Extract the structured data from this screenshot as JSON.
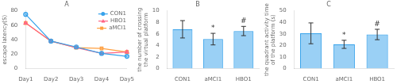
{
  "chart_data": [
    {
      "type": "line",
      "title": "A",
      "ylabel": "escape latency(S)",
      "categories": [
        "Day1",
        "Day2",
        "Day3",
        "Day4",
        "Day5"
      ],
      "series": [
        {
          "name": "CON1",
          "marker": "circle",
          "values": [
            75,
            38,
            30,
            21,
            17
          ]
        },
        {
          "name": "HBO1",
          "marker": "triangle",
          "values": [
            63,
            38,
            29,
            21,
            23
          ]
        },
        {
          "name": "aMCI1",
          "marker": "square",
          "values": [
            63,
            38,
            29,
            28,
            23
          ]
        }
      ],
      "ylim": [
        0,
        80
      ],
      "yticks": [
        0,
        20,
        40,
        60,
        80
      ],
      "grid": false,
      "legend": "upper right"
    },
    {
      "type": "bar",
      "title": "B",
      "ylabel": "the number of crossing\nthe virtual platform",
      "categories": [
        "CON1",
        "aMCI1",
        "HBO1"
      ],
      "values": [
        6.8,
        5.1,
        6.5
      ],
      "errors": [
        1.5,
        1.0,
        0.8
      ],
      "annotations": [
        {
          "category": "aMCI1",
          "text": "*"
        },
        {
          "category": "HBO1",
          "text": "#"
        }
      ],
      "ylim": [
        0,
        10
      ],
      "yticks": [
        0,
        2,
        4,
        6,
        8,
        10
      ],
      "grid": false
    },
    {
      "type": "bar",
      "title": "C",
      "ylabel": "the quadrant activity time\nof the platform (s)",
      "categories": [
        "CON1",
        "aMCI1",
        "HBO1"
      ],
      "values": [
        30.5,
        21.0,
        29.5
      ],
      "errors": [
        9.0,
        3.5,
        4.5
      ],
      "annotations": [
        {
          "category": "aMCI1",
          "text": "*"
        },
        {
          "category": "HBO1",
          "text": "#"
        }
      ],
      "ylim": [
        0,
        50
      ],
      "yticks": [
        0,
        10,
        20,
        30,
        40,
        50
      ],
      "grid": false
    }
  ]
}
